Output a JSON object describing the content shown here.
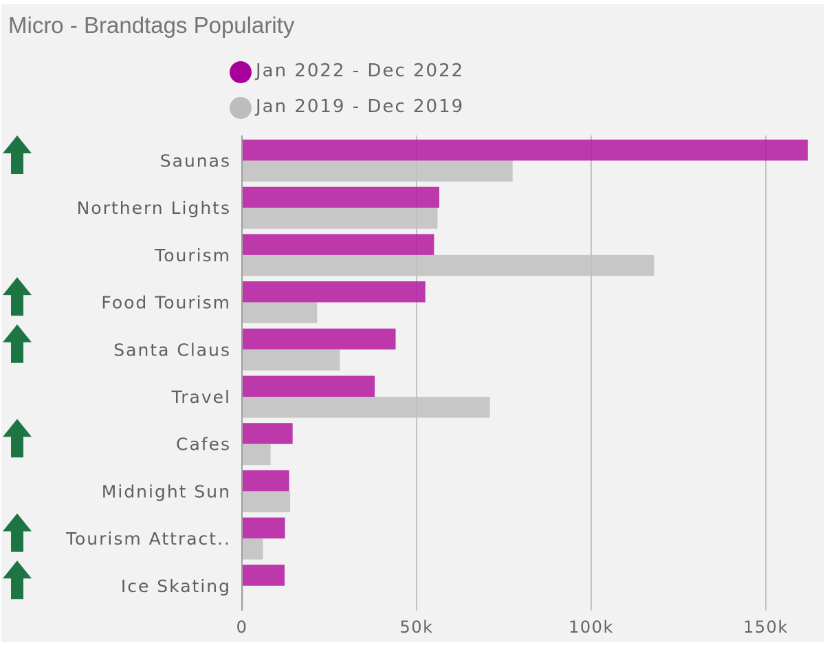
{
  "title": "Micro - Brandtags Popularity",
  "colors": {
    "current": "#b3179f",
    "previous": "#bfbfbf",
    "up_arrow": "#1e7544"
  },
  "legend": [
    {
      "label": "Jan 2022 - Dec 2022",
      "color": "#a8009a"
    },
    {
      "label": "Jan 2019 - Dec 2019",
      "color": "#bdbdbd"
    }
  ],
  "chart_data": {
    "type": "bar",
    "orientation": "horizontal",
    "categories": [
      "Saunas",
      "Northern Lights",
      "Tourism",
      "Food Tourism",
      "Santa Claus",
      "Travel",
      "Cafes",
      "Midnight Sun",
      "Tourism Attract..",
      "Ice Skating"
    ],
    "series": [
      {
        "name": "Jan 2022 - Dec 2022",
        "values": [
          162000,
          56500,
          55000,
          52500,
          44000,
          38000,
          14500,
          13500,
          12300,
          12200
        ]
      },
      {
        "name": "Jan 2019 - Dec 2019",
        "values": [
          77500,
          56000,
          118000,
          21500,
          28000,
          71000,
          8200,
          13800,
          6000,
          300
        ]
      }
    ],
    "xlim": [
      0,
      162000
    ],
    "xticks": [
      0,
      50000,
      100000,
      150000
    ],
    "xtick_labels": [
      "0",
      "50k",
      "100k",
      "150k"
    ],
    "grid": true,
    "legend_position": "top",
    "trend_up_categories": [
      "Saunas",
      "Food Tourism",
      "Santa Claus",
      "Cafes",
      "Tourism Attract..",
      "Ice Skating"
    ]
  }
}
